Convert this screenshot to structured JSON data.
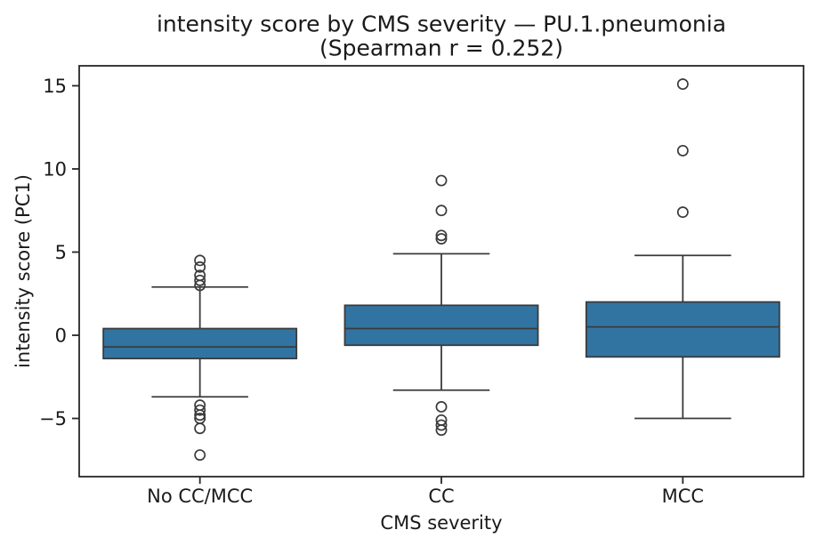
{
  "chart_data": {
    "type": "box",
    "title": "intensity score by CMS severity — PU.1.pneumonia",
    "subtitle": "(Spearman r = 0.252)",
    "xlabel": "CMS severity",
    "ylabel": "intensity score (PC1)",
    "categories": [
      "No CC/MCC",
      "CC",
      "MCC"
    ],
    "yticks": [
      -5,
      0,
      5,
      10,
      15
    ],
    "ylim": [
      -8.5,
      16.2
    ],
    "grid": false,
    "legend": "none",
    "box_fill": "#3274a1",
    "line_color": "#3b3b3b",
    "axis_color": "#262626",
    "text_color": "#1a1a1a",
    "boxes": [
      {
        "category": "No CC/MCC",
        "whisker_low": -3.7,
        "q1": -1.4,
        "median": -0.7,
        "q3": 0.4,
        "whisker_high": 2.9,
        "outliers": [
          4.5,
          4.1,
          3.6,
          3.3,
          3.0,
          -4.2,
          -4.5,
          -4.8,
          -5.0,
          -5.6,
          -7.2
        ]
      },
      {
        "category": "CC",
        "whisker_low": -3.3,
        "q1": -0.6,
        "median": 0.4,
        "q3": 1.8,
        "whisker_high": 4.9,
        "outliers": [
          9.3,
          7.5,
          6.0,
          5.8,
          -4.3,
          -5.1,
          -5.4,
          -5.7
        ]
      },
      {
        "category": "MCC",
        "whisker_low": -5.0,
        "q1": -1.3,
        "median": 0.5,
        "q3": 2.0,
        "whisker_high": 4.8,
        "outliers": [
          15.1,
          11.1,
          7.4
        ]
      }
    ]
  }
}
